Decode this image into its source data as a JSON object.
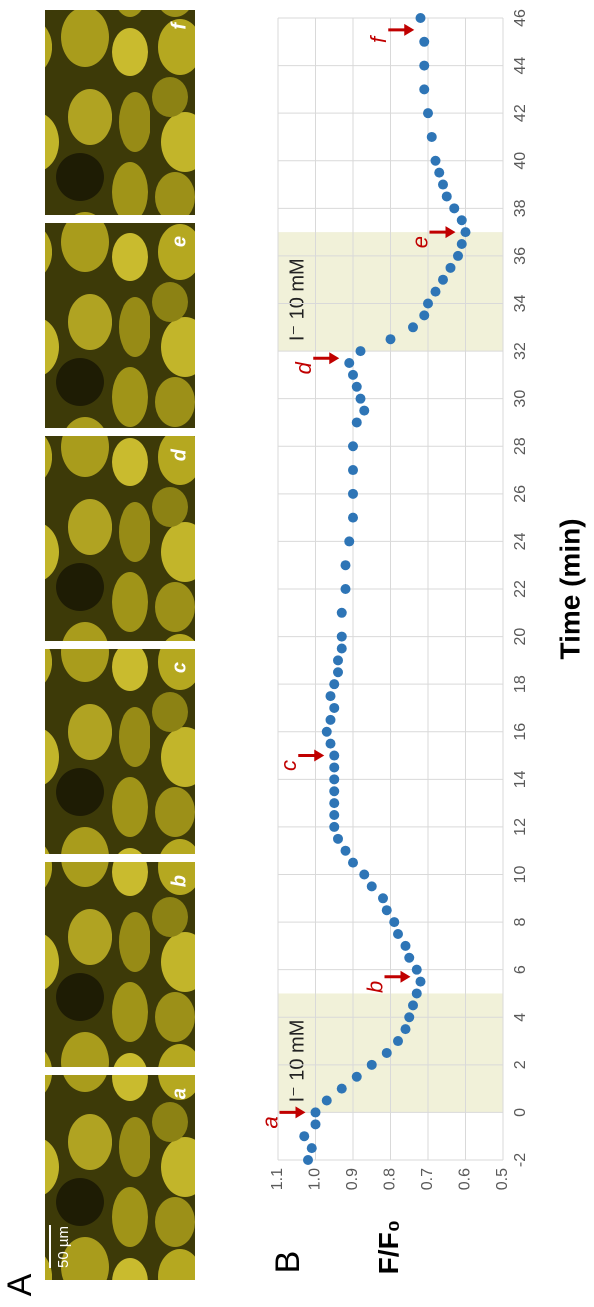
{
  "panel_labels": [
    "A",
    "B"
  ],
  "panel_a": {
    "scale_bar": "50 µm",
    "images": [
      "a",
      "b",
      "c",
      "d",
      "e",
      "f"
    ]
  },
  "chart_data": {
    "type": "scatter",
    "x_label": "Time (min)",
    "y_label": "F/F₀",
    "x": [
      -2,
      -1.5,
      -1,
      -0.5,
      0,
      0.5,
      1,
      1.5,
      2,
      2.5,
      3,
      3.5,
      4,
      4.5,
      5,
      5.5,
      6,
      6.5,
      7,
      7.5,
      8,
      8.5,
      9,
      9.5,
      10,
      10.5,
      11,
      11.5,
      12,
      12.5,
      13,
      13.5,
      14,
      14.5,
      15,
      15.5,
      16,
      16.5,
      17,
      17.5,
      18,
      18.5,
      19,
      19.5,
      20,
      21,
      22,
      23,
      24,
      25,
      26,
      27,
      28,
      29,
      29.5,
      30,
      30.5,
      31,
      31.5,
      32,
      32.5,
      33,
      33.5,
      34,
      34.5,
      35,
      35.5,
      36,
      36.5,
      37,
      37.5,
      38,
      38.5,
      39,
      39.5,
      40,
      41,
      42,
      43,
      44,
      45,
      46
    ],
    "values": [
      1.02,
      1.01,
      1.03,
      1.0,
      1.0,
      0.97,
      0.93,
      0.89,
      0.85,
      0.81,
      0.78,
      0.76,
      0.75,
      0.74,
      0.73,
      0.72,
      0.73,
      0.75,
      0.76,
      0.78,
      0.79,
      0.81,
      0.82,
      0.85,
      0.87,
      0.9,
      0.92,
      0.94,
      0.95,
      0.95,
      0.95,
      0.95,
      0.95,
      0.95,
      0.95,
      0.96,
      0.97,
      0.96,
      0.95,
      0.96,
      0.95,
      0.94,
      0.94,
      0.93,
      0.93,
      0.93,
      0.92,
      0.92,
      0.91,
      0.9,
      0.9,
      0.9,
      0.9,
      0.89,
      0.87,
      0.88,
      0.89,
      0.9,
      0.91,
      0.88,
      0.8,
      0.74,
      0.71,
      0.7,
      0.68,
      0.66,
      0.64,
      0.62,
      0.61,
      0.6,
      0.61,
      0.63,
      0.65,
      0.66,
      0.67,
      0.68,
      0.69,
      0.7,
      0.71,
      0.71,
      0.71,
      0.72
    ],
    "color": "#2e75b6",
    "xlim": [
      -2,
      46
    ],
    "xticks": [
      -2,
      0,
      2,
      4,
      6,
      8,
      10,
      12,
      14,
      16,
      18,
      20,
      22,
      24,
      26,
      28,
      30,
      32,
      34,
      36,
      38,
      40,
      42,
      44,
      46
    ],
    "ylim": [
      0.5,
      1.1
    ],
    "yticks": [
      0.5,
      0.6,
      0.7,
      0.8,
      0.9,
      {
        "value": 1,
        "label": "1.0"
      },
      1.1
    ],
    "grid": true,
    "shaded_regions": [
      {
        "xrange": [
          0,
          5
        ],
        "label": "I⁻ 10 mM",
        "color": "#f1f1d9"
      },
      {
        "xrange": [
          32,
          37
        ],
        "label": "I⁻ 10 mM",
        "color": "#f1f1d9"
      }
    ],
    "annotation_color": "#c00000",
    "annotations": [
      {
        "text": "a",
        "x": 0,
        "y": 1.0
      },
      {
        "text": "b",
        "x": 5.7,
        "y": 0.72
      },
      {
        "text": "c",
        "x": 15,
        "y": 0.95
      },
      {
        "text": "d",
        "x": 31.7,
        "y": 0.91
      },
      {
        "text": "e",
        "x": 37,
        "y": 0.6
      },
      {
        "text": "f",
        "x": 45.5,
        "y": 0.71
      }
    ]
  }
}
